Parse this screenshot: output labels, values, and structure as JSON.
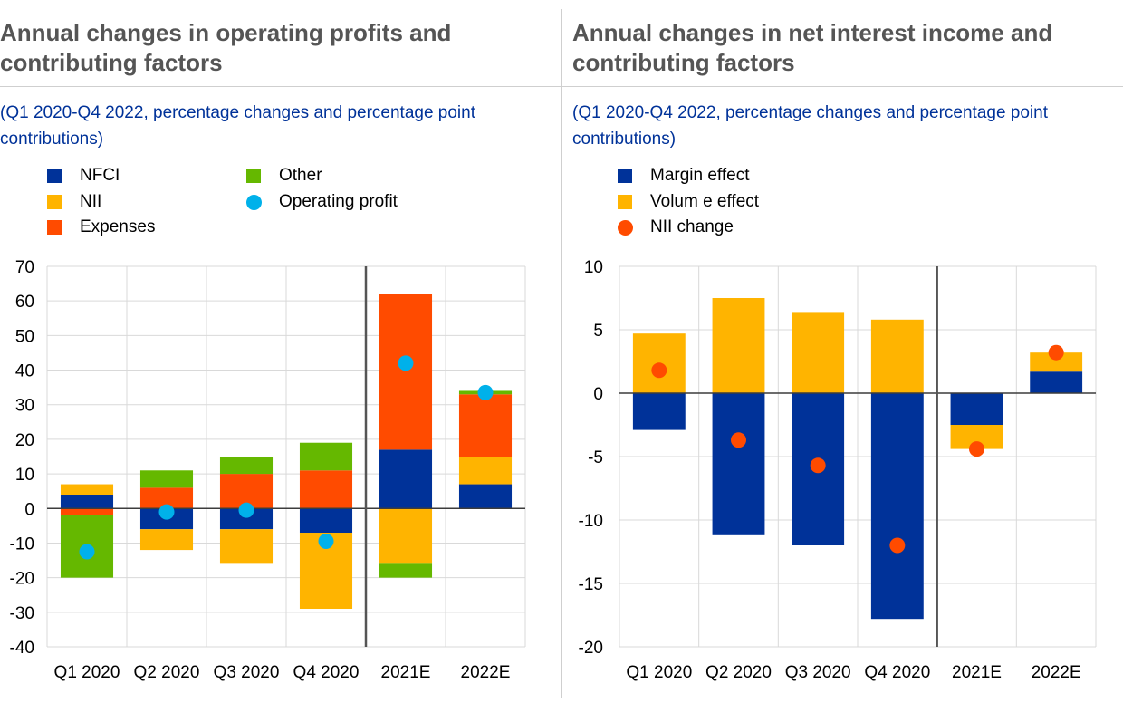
{
  "chart_data": [
    {
      "type": "bar",
      "stacked": true,
      "title": "Annual changes in operating profits and contributing factors",
      "subtitle": "(Q1 2020-Q4 2022, percentage changes and percentage point contributions)",
      "categories": [
        "Q1 2020",
        "Q2 2020",
        "Q3 2020",
        "Q4 2020",
        "2021E",
        "2022E"
      ],
      "ylim": [
        -40,
        70
      ],
      "yticks": [
        70,
        60,
        50,
        40,
        30,
        20,
        10,
        0,
        -10,
        -20,
        -30,
        -40
      ],
      "grid": true,
      "legend_position": "top-left",
      "separator_after_category": 3,
      "series": [
        {
          "name": "NFCI",
          "kind": "bar",
          "color": "#003299",
          "values": [
            4,
            -6,
            -6,
            -7,
            17,
            7
          ]
        },
        {
          "name": "NII",
          "kind": "bar",
          "color": "#FFB400",
          "values": [
            3,
            -6,
            -10,
            -22,
            -16,
            8
          ]
        },
        {
          "name": "Expenses",
          "kind": "bar",
          "color": "#FF4B00",
          "values": [
            -2,
            6,
            10,
            11,
            45,
            18
          ]
        },
        {
          "name": "Other",
          "kind": "bar",
          "color": "#65B800",
          "values": [
            -18,
            5,
            5,
            8,
            -4,
            1
          ]
        },
        {
          "name": "Operating profit",
          "kind": "dot",
          "color": "#00B1EA",
          "values": [
            -12.5,
            -1,
            -0.5,
            -9.5,
            42,
            33.5
          ]
        }
      ]
    },
    {
      "type": "bar",
      "stacked": true,
      "title": "Annual changes in net interest income and contributing factors",
      "subtitle": "(Q1 2020-Q4 2022, percentage changes and percentage point contributions)",
      "categories": [
        "Q1 2020",
        "Q2 2020",
        "Q3 2020",
        "Q4 2020",
        "2021E",
        "2022E"
      ],
      "ylim": [
        -20,
        10
      ],
      "yticks": [
        10,
        5,
        0,
        -5,
        -10,
        -15,
        -20
      ],
      "grid": true,
      "legend_position": "top-left",
      "separator_after_category": 3,
      "series": [
        {
          "name": "Margin effect",
          "kind": "bar",
          "color": "#003299",
          "values": [
            -2.9,
            -11.2,
            -12,
            -17.8,
            -2.5,
            1.7
          ]
        },
        {
          "name": "Volum e effect",
          "kind": "bar",
          "color": "#FFB400",
          "values": [
            4.7,
            7.5,
            6.4,
            5.8,
            -1.9,
            1.5
          ]
        },
        {
          "name": "NII change",
          "kind": "dot",
          "color": "#FF4B00",
          "values": [
            1.8,
            -3.7,
            -5.7,
            -12,
            -4.4,
            3.2
          ]
        }
      ]
    }
  ]
}
